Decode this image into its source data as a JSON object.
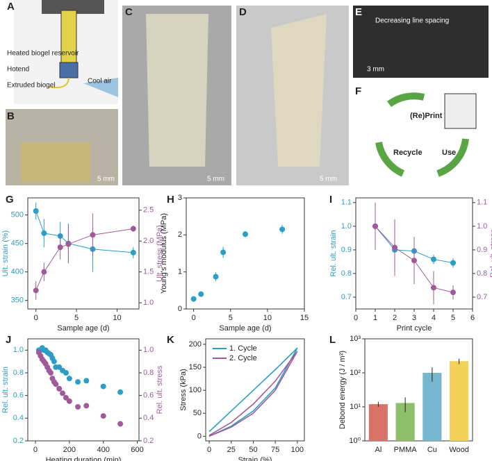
{
  "panels": [
    "A",
    "B",
    "C",
    "D",
    "E",
    "F",
    "G",
    "H",
    "I",
    "J",
    "K",
    "L"
  ],
  "photos": {
    "a_labels": [
      "Heated biogel reservoir",
      "Hotend",
      "Extruded biogel",
      "Cool air"
    ],
    "b_scale": "5 mm",
    "c_scale": "5 mm",
    "d_scale": "5 mm",
    "e_text": "Decreasing line spacing",
    "e_scale": "3 mm",
    "f_labels": [
      "(Re)Print",
      "Use",
      "Recycle"
    ]
  },
  "chart_data": [
    {
      "type": "line",
      "markers": true,
      "xlabel": "Sample age (d)",
      "ylabel": "Ult. strain (%)",
      "y2label": "Ult. stress (MPa)",
      "xlim": [
        -1,
        12.7
      ],
      "xticks": [
        0,
        5,
        10
      ],
      "ylim": [
        335,
        530
      ],
      "yticks": [
        350,
        400,
        450,
        500
      ],
      "y2lim": [
        0.9,
        2.7
      ],
      "y2ticks": [
        {
          "value": 1,
          "label": "1.0"
        },
        1.5,
        {
          "value": 2,
          "label": "2.0"
        },
        2.5
      ],
      "series": [
        {
          "color": "#2a9ec4",
          "x": [
            0,
            1,
            3,
            4,
            7,
            12
          ],
          "values": [
            507,
            468,
            463,
            450,
            440,
            434
          ],
          "errors": [
            15,
            25,
            25,
            35,
            40,
            10
          ]
        },
        {
          "color": "#a05a9a",
          "axis": "y2",
          "x": [
            0,
            1,
            3,
            4,
            7,
            12
          ],
          "values": [
            1.2,
            1.5,
            1.9,
            1.95,
            2.1,
            2.2
          ],
          "errors": [
            0.15,
            0.15,
            0.2,
            0.3,
            0.35,
            0.05
          ]
        }
      ]
    },
    {
      "type": "scatter",
      "xlabel": "Sample age (d)",
      "ylabel": "Young's modulus (MPa)",
      "xlim": [
        -1,
        15
      ],
      "xticks": [
        0,
        5,
        10,
        15
      ],
      "ylim": [
        0,
        3
      ],
      "yticks": [
        0,
        1,
        2,
        3
      ],
      "series": [
        {
          "color": "#2a9ec4",
          "x": [
            0,
            1,
            3,
            4,
            7,
            12
          ],
          "values": [
            0.27,
            0.4,
            0.87,
            1.53,
            2.02,
            2.15
          ],
          "errors": [
            0.05,
            0.07,
            0.12,
            0.15,
            0.08,
            0.12
          ]
        }
      ]
    },
    {
      "type": "line",
      "markers": true,
      "xlabel": "Print cycle",
      "ylabel": "Rel. ult. strain",
      "y2label": "Rel. ult. stress",
      "xlim": [
        0,
        6
      ],
      "xticks": [
        0,
        1,
        2,
        3,
        4,
        5,
        6
      ],
      "ylim": [
        0.65,
        1.12
      ],
      "yticks": [
        0.7,
        0.8,
        0.9,
        {
          "value": 1,
          "label": "1.0"
        },
        1.1
      ],
      "y2lim": [
        0.65,
        1.12
      ],
      "y2ticks": [
        0.7,
        0.8,
        0.9,
        {
          "value": 1,
          "label": "1.0"
        },
        1.1
      ],
      "series": [
        {
          "color": "#2a9ec4",
          "x": [
            1,
            2,
            3,
            4,
            5
          ],
          "values": [
            1.0,
            0.9,
            0.895,
            0.86,
            0.845
          ],
          "errors": [
            0.05,
            0.04,
            0.04,
            0.02,
            0.02
          ]
        },
        {
          "color": "#a05a9a",
          "axis": "y2",
          "x": [
            1,
            2,
            3,
            4,
            5
          ],
          "values": [
            1.0,
            0.91,
            0.855,
            0.74,
            0.72
          ],
          "errors": [
            0.1,
            0.12,
            0.1,
            0.07,
            0.03
          ]
        }
      ]
    },
    {
      "type": "scatter",
      "xlabel": "Heating duration (min)",
      "ylabel": "Rel. ult. strain",
      "y2label": "Rel. ult. stress",
      "xlim": [
        -45,
        610
      ],
      "xticks": [
        0,
        200,
        400,
        600
      ],
      "ylim": [
        0.2,
        1.1
      ],
      "yticks": [
        0.2,
        0.4,
        0.6,
        0.8,
        {
          "value": 1,
          "label": "1.0"
        }
      ],
      "y2lim": [
        0.2,
        1.1
      ],
      "y2ticks": [
        0.2,
        0.4,
        0.6,
        0.8,
        {
          "value": 1,
          "label": "1.0"
        }
      ],
      "series": [
        {
          "color": "#2a9ec4",
          "x": [
            20,
            30,
            40,
            50,
            60,
            70,
            80,
            90,
            100,
            110,
            120,
            140,
            160,
            180,
            200,
            250,
            300,
            400,
            500
          ],
          "values": [
            1.0,
            1.0,
            1.02,
            1.0,
            1.0,
            0.98,
            0.97,
            0.96,
            0.93,
            0.9,
            0.85,
            0.85,
            0.82,
            0.8,
            0.75,
            0.72,
            0.73,
            0.68,
            0.63
          ]
        },
        {
          "color": "#a05a9a",
          "axis": "y2",
          "x": [
            20,
            30,
            40,
            50,
            60,
            70,
            80,
            90,
            100,
            110,
            120,
            140,
            160,
            180,
            200,
            250,
            300,
            400,
            500
          ],
          "values": [
            0.98,
            0.95,
            0.92,
            0.9,
            0.88,
            0.85,
            0.82,
            0.8,
            0.75,
            0.72,
            0.7,
            0.66,
            0.62,
            0.58,
            0.55,
            0.5,
            0.51,
            0.42,
            0.35
          ]
        }
      ]
    },
    {
      "type": "line",
      "xlabel": "Strain (%)",
      "ylabel": "Stress (kPa)",
      "legend": "upper left",
      "xlim": [
        -4,
        108
      ],
      "xticks": [
        0,
        25,
        50,
        75,
        100
      ],
      "ylim": [
        -10,
        212
      ],
      "yticks": [
        0,
        50,
        100,
        150,
        200
      ],
      "series": [
        {
          "name": "1. Cycle",
          "color": "#2a9ec4",
          "x": [
            0,
            25,
            50,
            75,
            100,
            75,
            50,
            25,
            0
          ],
          "values": [
            10,
            55,
            100,
            145,
            192,
            105,
            55,
            22,
            0
          ]
        },
        {
          "name": "2. Cycle",
          "color": "#a05a9a",
          "x": [
            0,
            25,
            50,
            75,
            100,
            75,
            50,
            25,
            0
          ],
          "values": [
            2,
            30,
            70,
            120,
            185,
            100,
            50,
            20,
            0
          ]
        }
      ]
    },
    {
      "type": "bar",
      "log_scale": true,
      "ylabel": "Debond energy (J / m²)",
      "categories": [
        "Al",
        "PMMA",
        "Cu",
        "Wood"
      ],
      "values": [
        12,
        13,
        100,
        220
      ],
      "errors": [
        2,
        6,
        45,
        40
      ],
      "colors": [
        "#d9736a",
        "#8fbf6b",
        "#78b7d0",
        "#f2d15a"
      ],
      "ylim": [
        1,
        1000
      ],
      "yticks": [
        {
          "value": 1,
          "label": "10⁰"
        },
        {
          "value": 10,
          "label": "10¹"
        },
        {
          "value": 100,
          "label": "10²"
        },
        {
          "value": 1000,
          "label": "10³"
        }
      ]
    }
  ]
}
